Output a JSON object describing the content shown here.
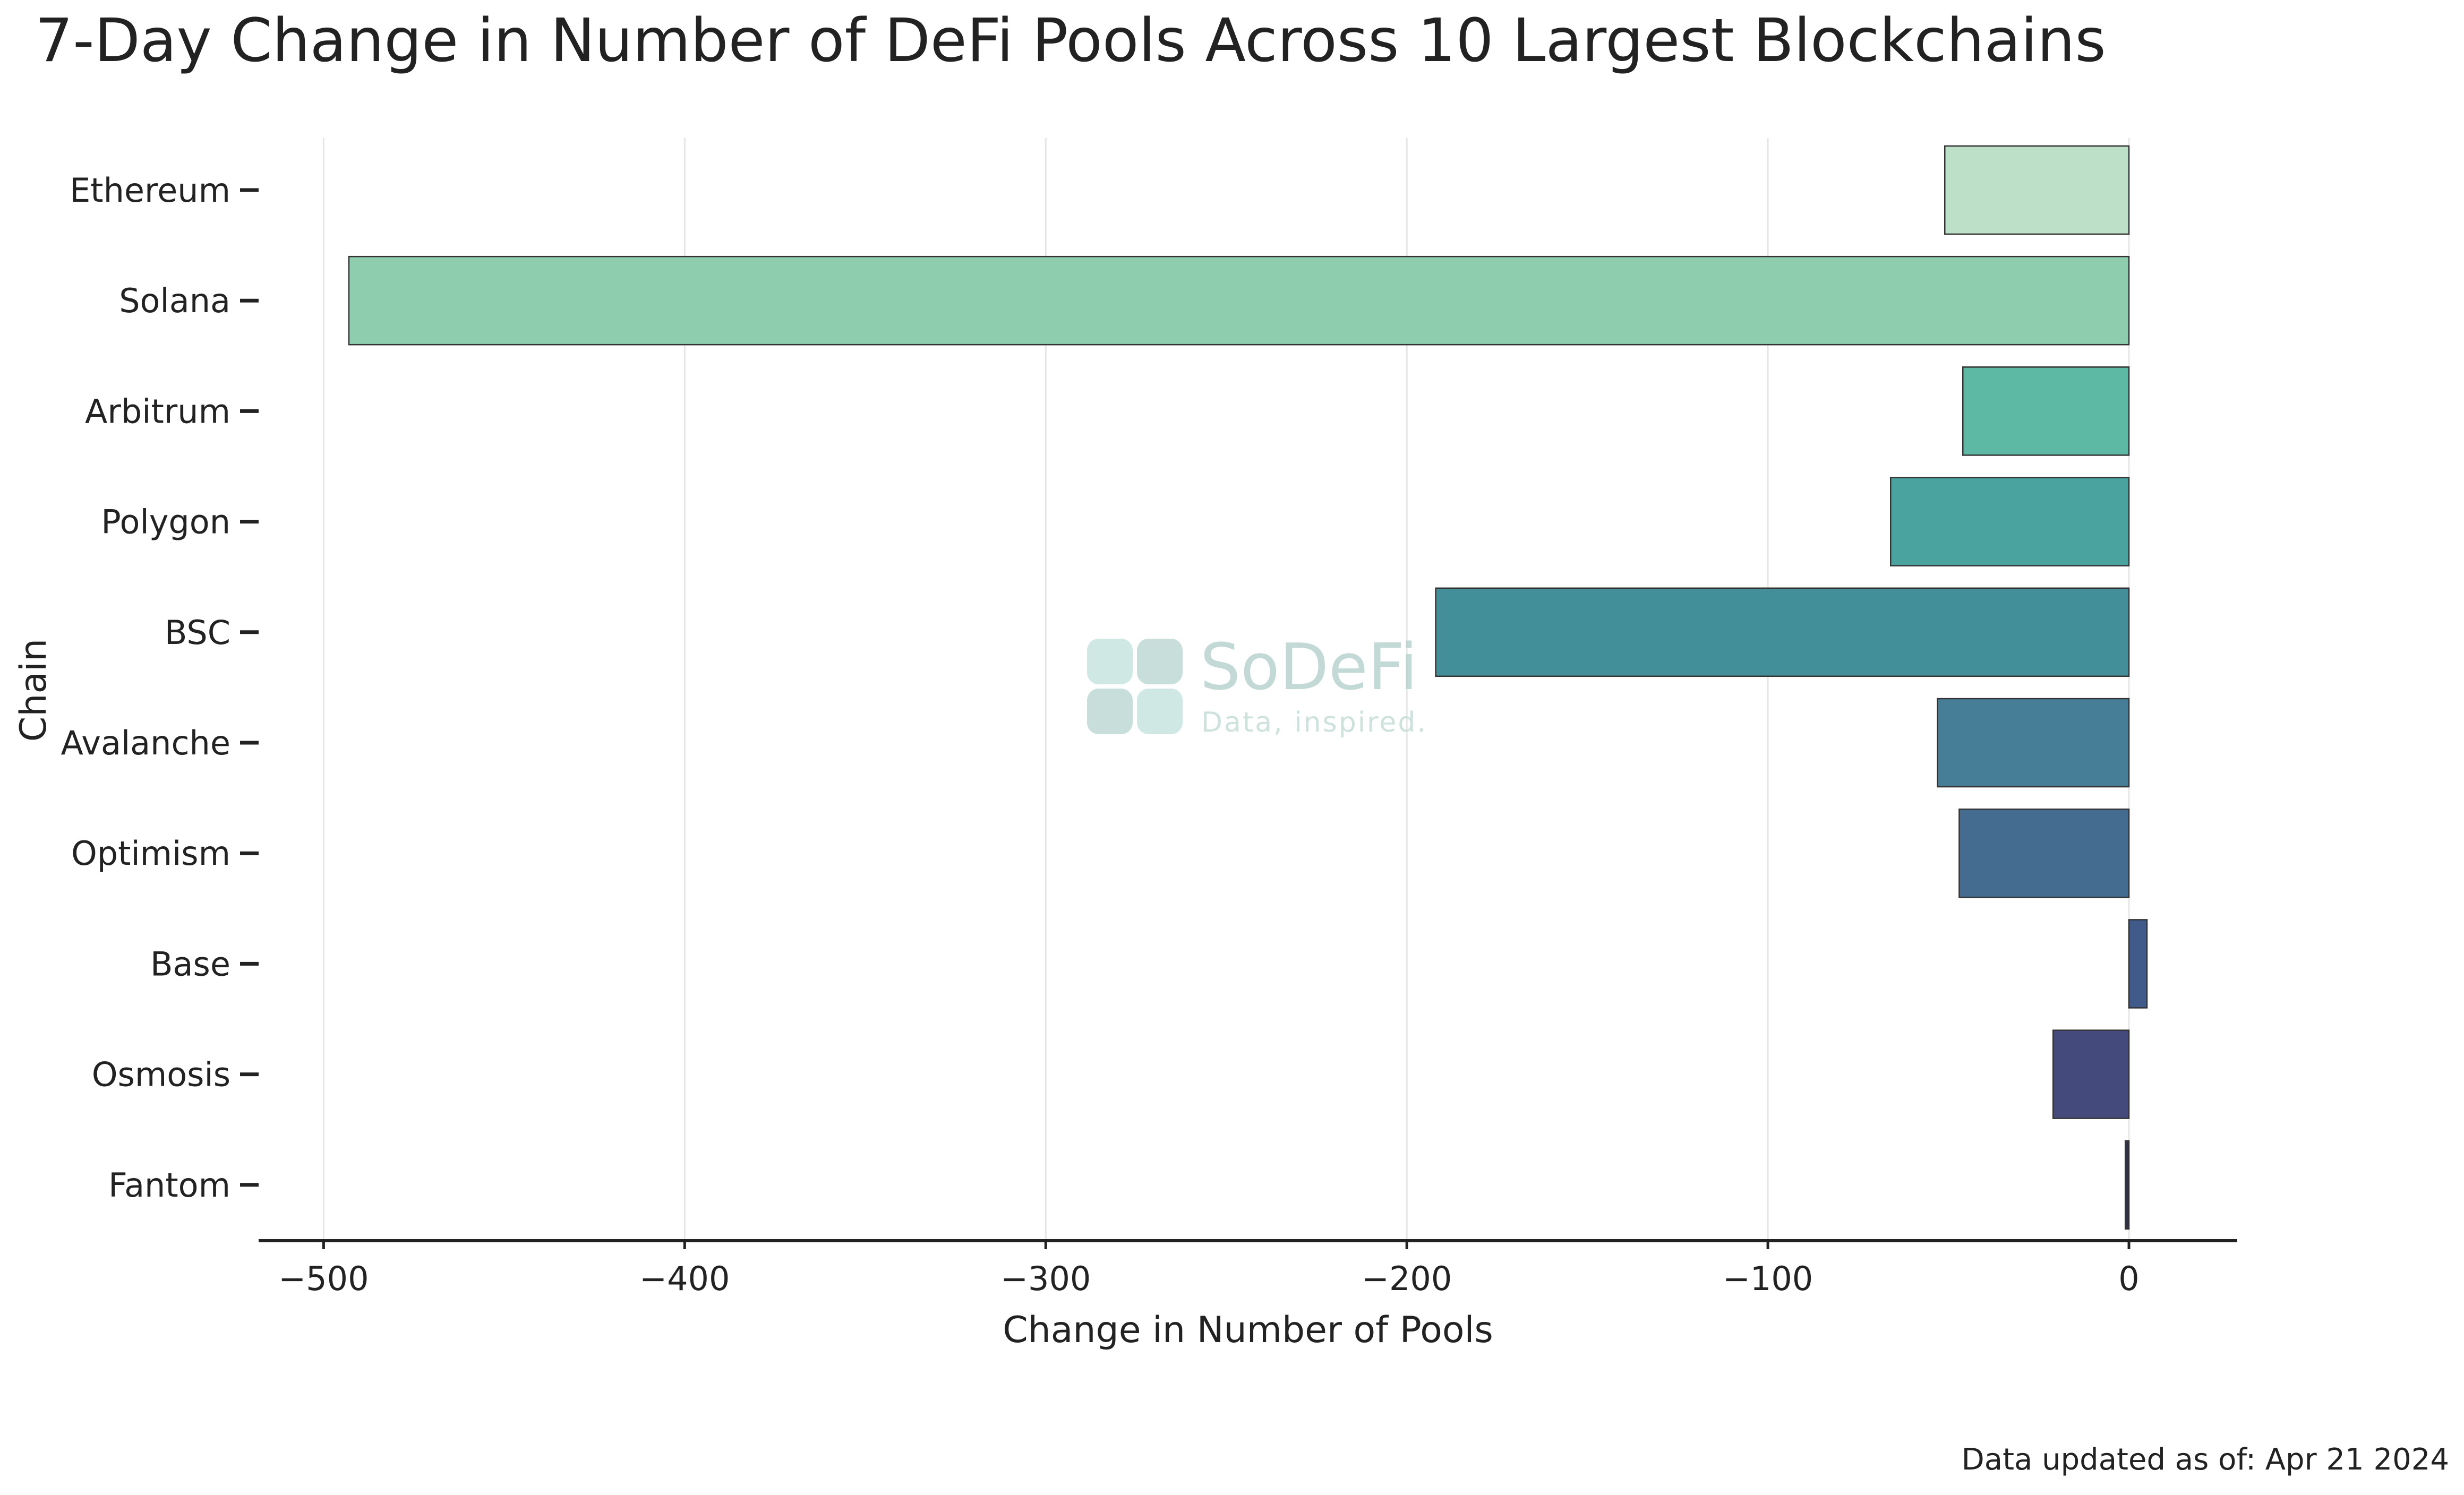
{
  "chart_data": {
    "type": "bar",
    "orientation": "horizontal",
    "title": "7-Day Change in Number of DeFi Pools Across 10 Largest Blockchains",
    "xlabel": "Change in Number of Pools",
    "ylabel": "Chain",
    "categories": [
      "Ethereum",
      "Solana",
      "Arbitrum",
      "Polygon",
      "BSC",
      "Avalanche",
      "Optimism",
      "Base",
      "Osmosis",
      "Fantom"
    ],
    "values": [
      -51,
      -493,
      -46,
      -66,
      -192,
      -53,
      -47,
      5,
      -21,
      -1
    ],
    "colors": [
      "#bde0c8",
      "#8ecdad",
      "#5db8a4",
      "#4aa39f",
      "#438f99",
      "#467d97",
      "#436c90",
      "#405a8a",
      "#444a7c",
      "#2f3148"
    ],
    "xlim": [
      -518,
      30
    ],
    "xticks": [
      -500,
      -400,
      -300,
      -200,
      -100,
      0
    ],
    "xtick_labels": [
      "−500",
      "−400",
      "−300",
      "−200",
      "−100",
      "0"
    ],
    "grid": "vertical",
    "footnote": "Data updated as of: Apr 21 2024"
  },
  "watermark": {
    "name": "SoDeFi",
    "tagline": "Data, inspired."
  }
}
